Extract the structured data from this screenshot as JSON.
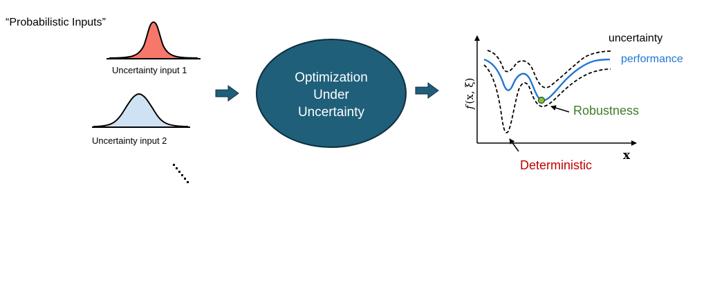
{
  "left": {
    "header": "“Probabilistic Inputs”",
    "inputs": [
      {
        "label": "Uncertainty input 1",
        "fill": "#F8776B"
      },
      {
        "label": "Uncertainty input 2",
        "fill": "#CFE2F3"
      }
    ]
  },
  "center": {
    "lines": [
      "Optimization",
      "Under",
      "Uncertainty"
    ],
    "fill": "#1F5F7A",
    "stroke": "#0E2F3E",
    "arrow_color": "#1F5F7A"
  },
  "plot": {
    "ylabel_f": "f",
    "ylabel_args": "(x, ξ)",
    "xlabel": "x",
    "labels": {
      "uncertainty": "uncertainty",
      "performance": "performance",
      "robustness": "Robustness",
      "deterministic": "Deterministic"
    },
    "colors": {
      "performance": "#1F77D4",
      "robustness": "#3E7D2A",
      "deterministic": "#C00000",
      "robust_point": "#7CC142"
    }
  }
}
